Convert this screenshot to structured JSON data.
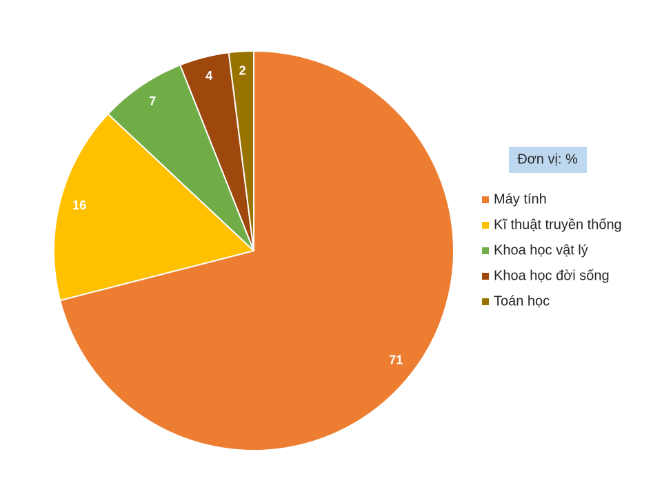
{
  "chart_data": {
    "type": "pie",
    "annotation": "Đơn vị: %",
    "categories": [
      "Máy tính",
      "Kĩ thuật truyền thống",
      "Khoa học vật lý",
      "Khoa học đời sống",
      "Toán học"
    ],
    "values": [
      71,
      16,
      7,
      4,
      2
    ],
    "colors": [
      "#ED7D31",
      "#FFC000",
      "#70AD47",
      "#9E480E",
      "#997300"
    ],
    "legend": "right"
  }
}
